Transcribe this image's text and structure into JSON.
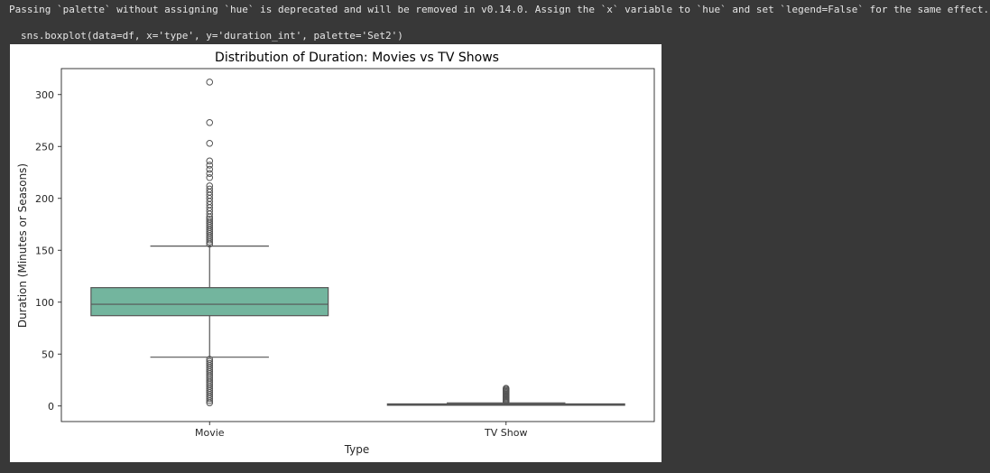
{
  "output": {
    "warning_text": "Passing `palette` without assigning `hue` is deprecated and will be removed in v0.14.0. Assign the `x` variable to `hue` and set `legend=False` for the same effect.",
    "code_line": "sns.boxplot(data=df, x='type', y='duration_int', palette='Set2')"
  },
  "chart_data": {
    "type": "box",
    "title": "Distribution of Duration: Movies vs TV Shows",
    "xlabel": "Type",
    "ylabel": "Duration (Minutes or Seasons)",
    "categories": [
      "Movie",
      "TV Show"
    ],
    "ylim": [
      -15,
      325
    ],
    "yticks": [
      0,
      50,
      100,
      150,
      200,
      250,
      300
    ],
    "grid": false,
    "colors": {
      "Movie": "#73b59e",
      "TV Show": "#ee9a77"
    },
    "boxes": [
      {
        "category": "Movie",
        "whisker_low": 47,
        "q1": 87,
        "median": 98,
        "q3": 114,
        "whisker_high": 154,
        "outliers": [
          3,
          5,
          7,
          9,
          11,
          13,
          15,
          17,
          19,
          21,
          23,
          25,
          27,
          29,
          31,
          33,
          35,
          37,
          39,
          41,
          43,
          45,
          156,
          158,
          160,
          162,
          164,
          166,
          168,
          170,
          172,
          174,
          176,
          178,
          180,
          182,
          185,
          188,
          191,
          194,
          197,
          200,
          203,
          206,
          209,
          212,
          220,
          224,
          228,
          232,
          236,
          253,
          273,
          312
        ]
      },
      {
        "category": "TV Show",
        "whisker_low": 1,
        "q1": 1,
        "median": 1,
        "q3": 2,
        "whisker_high": 3,
        "outliers": [
          4,
          5,
          6,
          7,
          8,
          9,
          10,
          11,
          12,
          13,
          14,
          15,
          16,
          17
        ]
      }
    ]
  }
}
